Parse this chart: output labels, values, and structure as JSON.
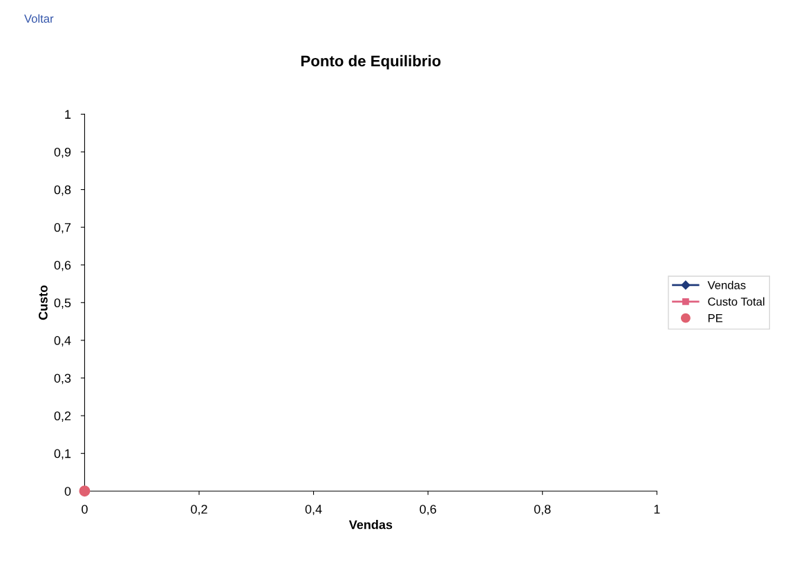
{
  "chart_data": {
    "type": "line",
    "title": "Ponto de Equilibrio",
    "xlabel": "Vendas",
    "ylabel": "Custo",
    "annotations": [
      "Voltar"
    ],
    "series": [
      {
        "name": "Vendas",
        "color": "#1f3a7a",
        "marker": "diamond"
      },
      {
        "name": "Custo Total",
        "color": "#e0607e",
        "marker": "square"
      },
      {
        "name": "PE",
        "type": "scatter",
        "color": "#e06070",
        "marker": "circle",
        "x": [
          0
        ],
        "values": [
          0
        ]
      }
    ],
    "xlim": [
      0,
      1
    ],
    "xticks": [
      0,
      {
        "value": 0.2,
        "label": "0,2"
      },
      {
        "value": 0.4,
        "label": "0,4"
      },
      {
        "value": 0.6,
        "label": "0,6"
      },
      {
        "value": 0.8,
        "label": "0,8"
      },
      1
    ],
    "ylim": [
      0,
      1
    ],
    "yticks": [
      0,
      {
        "value": 0.1,
        "label": "0,1"
      },
      {
        "value": 0.2,
        "label": "0,2"
      },
      {
        "value": 0.3,
        "label": "0,3"
      },
      {
        "value": 0.4,
        "label": "0,4"
      },
      {
        "value": 0.5,
        "label": "0,5"
      },
      {
        "value": 0.6,
        "label": "0,6"
      },
      {
        "value": 0.7,
        "label": "0,7"
      },
      {
        "value": 0.8,
        "label": "0,8"
      },
      {
        "value": 0.9,
        "label": "0,9"
      },
      1
    ],
    "grid": false,
    "legend": "right"
  }
}
